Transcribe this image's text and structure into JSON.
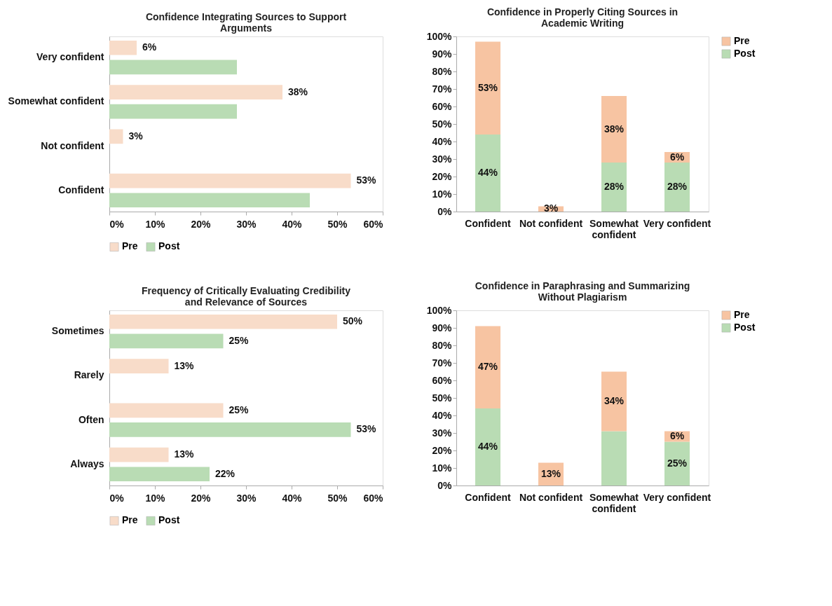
{
  "chart_data": [
    {
      "type": "bar",
      "orientation": "horizontal",
      "title": "Confidence Integrating Sources to Support Arguments",
      "categories": [
        "Very confident",
        "Somewhat confident",
        "Not confident",
        "Confident"
      ],
      "series": [
        {
          "name": "Pre",
          "color": "#f8dcc9",
          "values": [
            6,
            38,
            3,
            53
          ],
          "value_labels": [
            "6%",
            "38%",
            "3%",
            "53%"
          ]
        },
        {
          "name": "Post",
          "color": "#b9dcb4",
          "values": [
            28,
            28,
            0,
            44
          ],
          "value_labels": [
            null,
            null,
            null,
            null
          ]
        }
      ],
      "xlim": [
        0,
        60
      ],
      "xticks": [
        {
          "value": 0,
          "label": "0%"
        },
        {
          "value": 10,
          "label": "10%"
        },
        {
          "value": 20,
          "label": "20%"
        },
        {
          "value": 30,
          "label": "30%"
        },
        {
          "value": 40,
          "label": "40%"
        },
        {
          "value": 50,
          "label": "50%"
        },
        {
          "value": 60,
          "label": "60%"
        }
      ],
      "legend": "bottom"
    },
    {
      "type": "bar",
      "stacked": true,
      "title": "Confidence in Properly Citing Sources in Academic Writing",
      "categories": [
        "Confident",
        "Not confident",
        "Somewhat confident",
        "Very confident"
      ],
      "series": [
        {
          "name": "Post",
          "color": "#b9dcb4",
          "values": [
            44,
            0,
            28,
            28
          ],
          "value_labels": [
            "44%",
            null,
            "28%",
            "28%"
          ]
        },
        {
          "name": "Pre",
          "color": "#f7c4a2",
          "values": [
            53,
            3,
            38,
            6
          ],
          "value_labels": [
            "53%",
            "3%",
            "38%",
            "6%"
          ]
        }
      ],
      "ylim": [
        0,
        100
      ],
      "yticks": [
        {
          "value": 0,
          "label": "0%"
        },
        {
          "value": 10,
          "label": "10%"
        },
        {
          "value": 20,
          "label": "20%"
        },
        {
          "value": 30,
          "label": "30%"
        },
        {
          "value": 40,
          "label": "40%"
        },
        {
          "value": 50,
          "label": "50%"
        },
        {
          "value": 60,
          "label": "60%"
        },
        {
          "value": 70,
          "label": "70%"
        },
        {
          "value": 80,
          "label": "80%"
        },
        {
          "value": 90,
          "label": "90%"
        },
        {
          "value": 100,
          "label": "100%"
        }
      ],
      "legend": "right"
    },
    {
      "type": "bar",
      "orientation": "horizontal",
      "title": "Frequency of Critically Evaluating Credibility and Relevance of Sources",
      "categories": [
        "Sometimes",
        "Rarely",
        "Often",
        "Always"
      ],
      "series": [
        {
          "name": "Pre",
          "color": "#f8dcc9",
          "values": [
            50,
            13,
            25,
            13
          ],
          "value_labels": [
            "50%",
            "13%",
            "25%",
            "13%"
          ]
        },
        {
          "name": "Post",
          "color": "#b9dcb4",
          "values": [
            25,
            0,
            53,
            22
          ],
          "value_labels": [
            "25%",
            null,
            "53%",
            "22%"
          ]
        }
      ],
      "xlim": [
        0,
        60
      ],
      "xticks": [
        {
          "value": 0,
          "label": "0%"
        },
        {
          "value": 10,
          "label": "10%"
        },
        {
          "value": 20,
          "label": "20%"
        },
        {
          "value": 30,
          "label": "30%"
        },
        {
          "value": 40,
          "label": "40%"
        },
        {
          "value": 50,
          "label": "50%"
        },
        {
          "value": 60,
          "label": "60%"
        }
      ],
      "legend": "bottom"
    },
    {
      "type": "bar",
      "stacked": true,
      "title": "Confidence in Paraphrasing and Summarizing Without Plagiarism",
      "categories": [
        "Confident",
        "Not confident",
        "Somewhat confident",
        "Very confident"
      ],
      "series": [
        {
          "name": "Post",
          "color": "#b9dcb4",
          "values": [
            44,
            0,
            31,
            25
          ],
          "value_labels": [
            "44%",
            null,
            null,
            "25%"
          ]
        },
        {
          "name": "Pre",
          "color": "#f7c4a2",
          "values": [
            47,
            13,
            34,
            6
          ],
          "value_labels": [
            "47%",
            "13%",
            "34%",
            "6%"
          ]
        }
      ],
      "ylim": [
        0,
        100
      ],
      "yticks": [
        {
          "value": 0,
          "label": "0%"
        },
        {
          "value": 10,
          "label": "10%"
        },
        {
          "value": 20,
          "label": "20%"
        },
        {
          "value": 30,
          "label": "30%"
        },
        {
          "value": 40,
          "label": "40%"
        },
        {
          "value": 50,
          "label": "50%"
        },
        {
          "value": 60,
          "label": "60%"
        },
        {
          "value": 70,
          "label": "70%"
        },
        {
          "value": 80,
          "label": "80%"
        },
        {
          "value": 90,
          "label": "90%"
        },
        {
          "value": 100,
          "label": "100%"
        }
      ],
      "legend": "right"
    }
  ]
}
